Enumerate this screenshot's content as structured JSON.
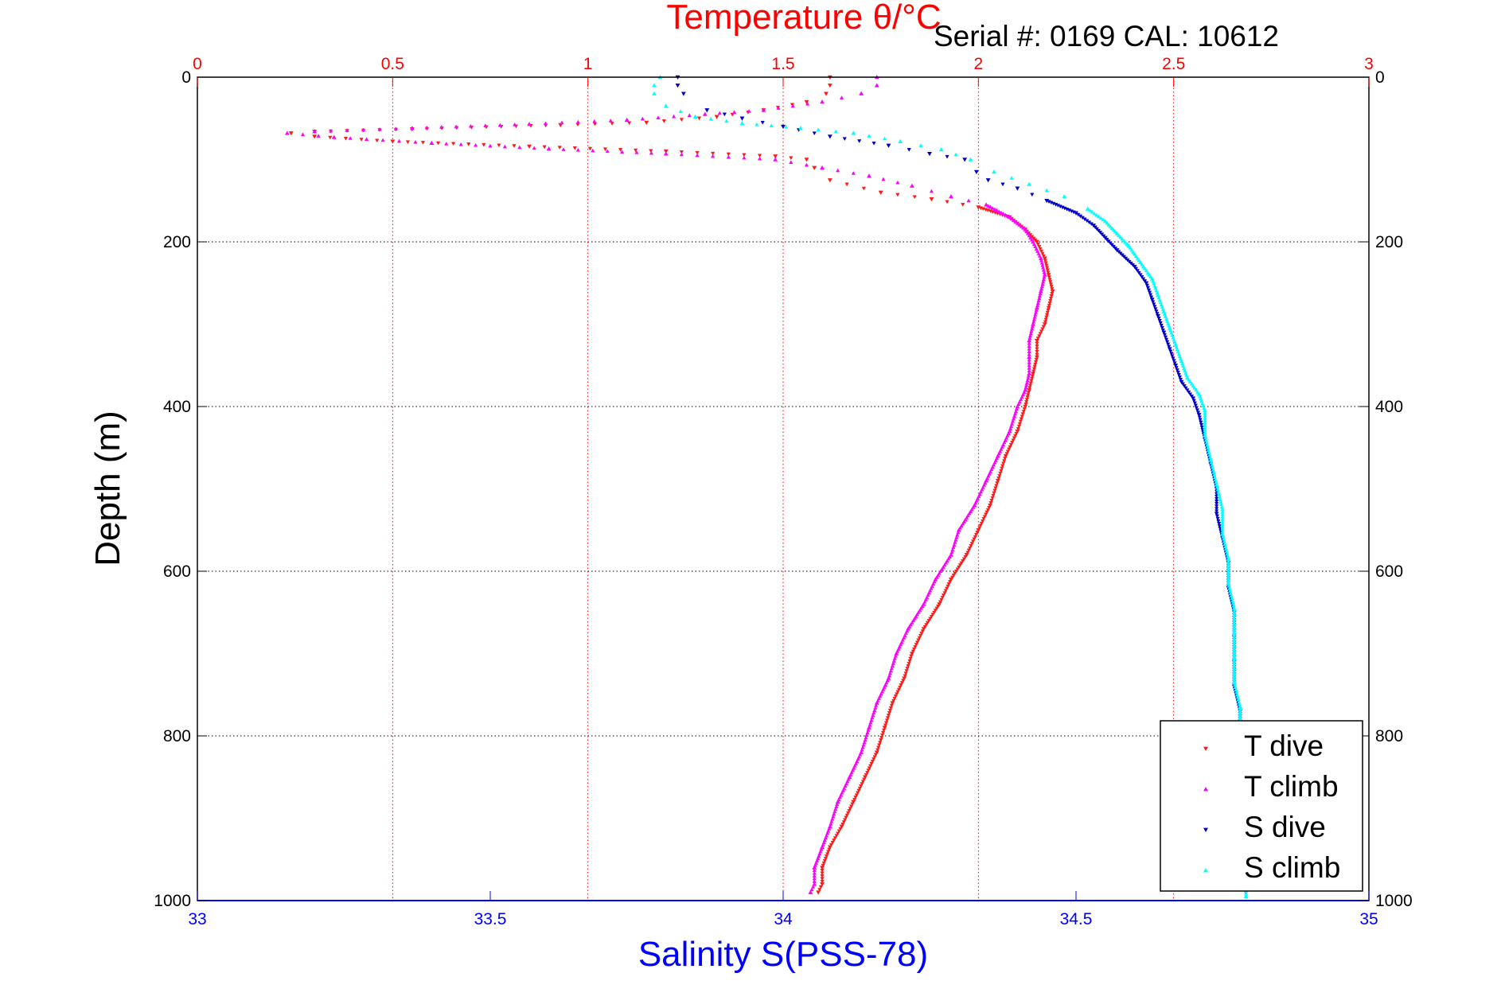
{
  "serial_label": "Serial #: 0169 CAL: 10612",
  "colors": {
    "t_dive": "#ff1a1a",
    "t_climb": "#ff00ff",
    "s_dive": "#0000cc",
    "s_climb": "#00ffff",
    "temperature_axis": "#ff0000",
    "salinity_axis": "#0000ff",
    "grid": "#000000"
  },
  "chart_data": {
    "type": "scatter",
    "title": "Temperature θ/°C",
    "xlabel": "Salinity S(PSS-78)",
    "ylabel": "Depth (m)",
    "x_top": {
      "label": "Temperature θ/°C",
      "lim": [
        0,
        3
      ],
      "ticks": [
        "0",
        "0.5",
        "1",
        "1.5",
        "2",
        "2.5",
        "3"
      ]
    },
    "x_bottom": {
      "label": "Salinity S(PSS-78)",
      "lim": [
        33,
        35
      ],
      "ticks": [
        "33",
        "33.5",
        "34",
        "34.5",
        "35"
      ]
    },
    "y": {
      "label": "Depth (m)",
      "lim": [
        0,
        1000
      ],
      "reversed": true,
      "ticks": [
        "0",
        "200",
        "400",
        "600",
        "800",
        "1000"
      ]
    },
    "grid": true,
    "legend_position": "bottom-right",
    "series": [
      {
        "name": "T dive",
        "axis": "temperature",
        "marker": "triangle-down",
        "points": [
          [
            1.62,
            0
          ],
          [
            1.62,
            10
          ],
          [
            1.61,
            20
          ],
          [
            1.56,
            30
          ],
          [
            1.45,
            40
          ],
          [
            1.33,
            48
          ],
          [
            1.15,
            55
          ],
          [
            0.93,
            58
          ],
          [
            0.55,
            63
          ],
          [
            0.3,
            66
          ],
          [
            0.24,
            68
          ],
          [
            0.3,
            72
          ],
          [
            0.5,
            78
          ],
          [
            0.85,
            84
          ],
          [
            1.2,
            90
          ],
          [
            1.48,
            96
          ],
          [
            1.56,
            100
          ],
          [
            1.58,
            110
          ],
          [
            1.62,
            125
          ],
          [
            1.75,
            140
          ],
          [
            1.88,
            148
          ],
          [
            2.0,
            158
          ],
          [
            2.08,
            170
          ],
          [
            2.12,
            185
          ],
          [
            2.15,
            200
          ],
          [
            2.17,
            220
          ],
          [
            2.18,
            240
          ],
          [
            2.19,
            260
          ],
          [
            2.18,
            280
          ],
          [
            2.17,
            300
          ],
          [
            2.15,
            320
          ],
          [
            2.15,
            340
          ],
          [
            2.14,
            360
          ],
          [
            2.13,
            380
          ],
          [
            2.12,
            400
          ],
          [
            2.1,
            430
          ],
          [
            2.07,
            460
          ],
          [
            2.05,
            490
          ],
          [
            2.03,
            520
          ],
          [
            2.0,
            550
          ],
          [
            1.97,
            580
          ],
          [
            1.93,
            610
          ],
          [
            1.9,
            640
          ],
          [
            1.86,
            670
          ],
          [
            1.83,
            700
          ],
          [
            1.81,
            730
          ],
          [
            1.78,
            760
          ],
          [
            1.76,
            790
          ],
          [
            1.74,
            820
          ],
          [
            1.71,
            850
          ],
          [
            1.68,
            880
          ],
          [
            1.65,
            910
          ],
          [
            1.62,
            935
          ],
          [
            1.6,
            960
          ],
          [
            1.6,
            980
          ],
          [
            1.59,
            990
          ]
        ]
      },
      {
        "name": "T climb",
        "axis": "temperature",
        "marker": "triangle-up",
        "points": [
          [
            1.74,
            0
          ],
          [
            1.74,
            10
          ],
          [
            1.7,
            20
          ],
          [
            1.6,
            30
          ],
          [
            1.45,
            40
          ],
          [
            1.3,
            45
          ],
          [
            1.1,
            52
          ],
          [
            0.85,
            57
          ],
          [
            0.55,
            62
          ],
          [
            0.3,
            66
          ],
          [
            0.23,
            68
          ],
          [
            0.35,
            73
          ],
          [
            0.6,
            80
          ],
          [
            0.9,
            87
          ],
          [
            1.2,
            93
          ],
          [
            1.48,
            100
          ],
          [
            1.6,
            110
          ],
          [
            1.72,
            120
          ],
          [
            1.83,
            132
          ],
          [
            1.93,
            145
          ],
          [
            2.02,
            155
          ],
          [
            2.08,
            170
          ],
          [
            2.12,
            185
          ],
          [
            2.14,
            200
          ],
          [
            2.16,
            220
          ],
          [
            2.17,
            240
          ],
          [
            2.16,
            260
          ],
          [
            2.15,
            280
          ],
          [
            2.14,
            300
          ],
          [
            2.13,
            320
          ],
          [
            2.13,
            340
          ],
          [
            2.13,
            360
          ],
          [
            2.12,
            380
          ],
          [
            2.1,
            400
          ],
          [
            2.08,
            430
          ],
          [
            2.05,
            460
          ],
          [
            2.02,
            490
          ],
          [
            1.99,
            520
          ],
          [
            1.95,
            550
          ],
          [
            1.93,
            580
          ],
          [
            1.89,
            610
          ],
          [
            1.86,
            640
          ],
          [
            1.82,
            670
          ],
          [
            1.79,
            700
          ],
          [
            1.77,
            730
          ],
          [
            1.74,
            760
          ],
          [
            1.72,
            790
          ],
          [
            1.7,
            820
          ],
          [
            1.67,
            850
          ],
          [
            1.64,
            880
          ],
          [
            1.62,
            910
          ],
          [
            1.6,
            935
          ],
          [
            1.58,
            960
          ],
          [
            1.58,
            980
          ],
          [
            1.57,
            990
          ]
        ]
      },
      {
        "name": "S dive",
        "axis": "salinity",
        "marker": "triangle-down",
        "points": [
          [
            33.82,
            0
          ],
          [
            33.82,
            10
          ],
          [
            33.83,
            20
          ],
          [
            33.87,
            40
          ],
          [
            33.93,
            50
          ],
          [
            34.0,
            60
          ],
          [
            34.08,
            72
          ],
          [
            34.18,
            83
          ],
          [
            34.25,
            93
          ],
          [
            34.31,
            100
          ],
          [
            34.33,
            115
          ],
          [
            34.35,
            125
          ],
          [
            34.4,
            135
          ],
          [
            34.45,
            150
          ],
          [
            34.5,
            165
          ],
          [
            34.53,
            180
          ],
          [
            34.55,
            195
          ],
          [
            34.57,
            210
          ],
          [
            34.6,
            230
          ],
          [
            34.62,
            250
          ],
          [
            34.63,
            270
          ],
          [
            34.64,
            290
          ],
          [
            34.65,
            310
          ],
          [
            34.66,
            330
          ],
          [
            34.67,
            350
          ],
          [
            34.68,
            370
          ],
          [
            34.7,
            390
          ],
          [
            34.71,
            410
          ],
          [
            34.72,
            440
          ],
          [
            34.73,
            470
          ],
          [
            34.74,
            500
          ],
          [
            34.74,
            530
          ],
          [
            34.75,
            560
          ],
          [
            34.76,
            590
          ],
          [
            34.76,
            620
          ],
          [
            34.77,
            650
          ],
          [
            34.77,
            680
          ],
          [
            34.77,
            710
          ],
          [
            34.77,
            740
          ],
          [
            34.78,
            770
          ],
          [
            34.78,
            800
          ],
          [
            34.78,
            830
          ],
          [
            34.78,
            860
          ],
          [
            34.78,
            890
          ],
          [
            34.78,
            920
          ],
          [
            34.79,
            950
          ],
          [
            34.79,
            975
          ],
          [
            34.79,
            990
          ]
        ]
      },
      {
        "name": "S climb",
        "axis": "salinity",
        "marker": "triangle-up",
        "points": [
          [
            33.79,
            0
          ],
          [
            33.78,
            10
          ],
          [
            33.78,
            20
          ],
          [
            33.8,
            35
          ],
          [
            33.85,
            48
          ],
          [
            33.93,
            56
          ],
          [
            34.03,
            62
          ],
          [
            34.12,
            68
          ],
          [
            34.2,
            78
          ],
          [
            34.27,
            88
          ],
          [
            34.32,
            100
          ],
          [
            34.36,
            115
          ],
          [
            34.42,
            130
          ],
          [
            34.48,
            145
          ],
          [
            34.52,
            160
          ],
          [
            34.55,
            175
          ],
          [
            34.57,
            190
          ],
          [
            34.59,
            205
          ],
          [
            34.61,
            225
          ],
          [
            34.63,
            245
          ],
          [
            34.64,
            265
          ],
          [
            34.65,
            285
          ],
          [
            34.66,
            305
          ],
          [
            34.67,
            325
          ],
          [
            34.68,
            345
          ],
          [
            34.69,
            365
          ],
          [
            34.71,
            385
          ],
          [
            34.72,
            405
          ],
          [
            34.72,
            435
          ],
          [
            34.73,
            465
          ],
          [
            34.74,
            495
          ],
          [
            34.75,
            525
          ],
          [
            34.75,
            555
          ],
          [
            34.76,
            585
          ],
          [
            34.76,
            615
          ],
          [
            34.77,
            645
          ],
          [
            34.77,
            675
          ],
          [
            34.77,
            705
          ],
          [
            34.77,
            735
          ],
          [
            34.78,
            765
          ],
          [
            34.78,
            795
          ],
          [
            34.78,
            825
          ],
          [
            34.78,
            855
          ],
          [
            34.78,
            885
          ],
          [
            34.79,
            915
          ],
          [
            34.79,
            945
          ],
          [
            34.79,
            975
          ],
          [
            34.79,
            995
          ]
        ]
      }
    ]
  }
}
